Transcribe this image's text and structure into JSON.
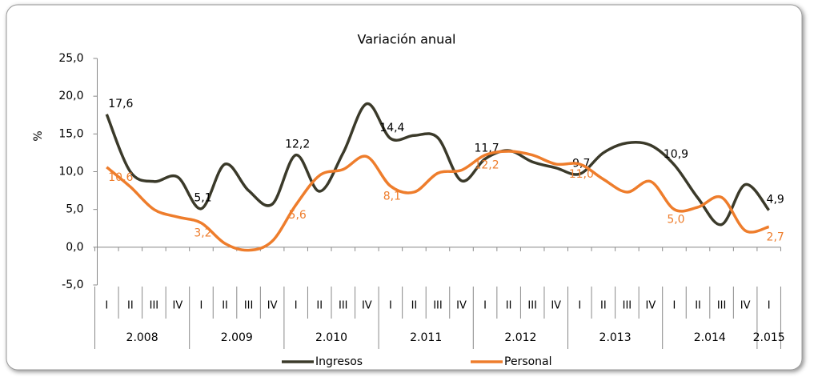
{
  "chart_data": {
    "type": "line",
    "title": "Variación anual",
    "y_label": "%",
    "categories": [
      "I",
      "II",
      "III",
      "IV",
      "I",
      "II",
      "III",
      "IV",
      "I",
      "II",
      "III",
      "IV",
      "I",
      "II",
      "III",
      "IV",
      "I",
      "II",
      "III",
      "IV",
      "I",
      "II",
      "III",
      "IV",
      "I",
      "II",
      "III",
      "IV",
      "I"
    ],
    "years": [
      "2.008",
      "2.009",
      "2.010",
      "2.011",
      "2.012",
      "2.013",
      "2.014",
      "2.015"
    ],
    "ylim": [
      -5,
      25
    ],
    "yticks": [
      {
        "value": -5,
        "label": "-5,0"
      },
      {
        "value": 0,
        "label": "0,0"
      },
      {
        "value": 5,
        "label": "5,0"
      },
      {
        "value": 10,
        "label": "10,0"
      },
      {
        "value": 15,
        "label": "15,0"
      },
      {
        "value": 20,
        "label": "20,0"
      },
      {
        "value": 25,
        "label": "25,0"
      }
    ],
    "legend": "bottom",
    "smooth": true,
    "series": [
      {
        "name": "Ingresos",
        "color": "#3b3a2a",
        "values": [
          17.6,
          10.0,
          8.7,
          9.3,
          5.1,
          11.0,
          7.5,
          5.7,
          12.2,
          7.4,
          12.5,
          19.0,
          14.4,
          14.8,
          14.5,
          8.8,
          11.7,
          12.8,
          11.3,
          10.5,
          9.7,
          12.5,
          13.8,
          13.5,
          10.9,
          6.5,
          3.0,
          8.3,
          4.9
        ],
        "value_labels": [
          "17,6",
          null,
          null,
          null,
          "5,1",
          null,
          null,
          null,
          "12,2",
          null,
          null,
          null,
          "14,4",
          null,
          null,
          null,
          "11,7",
          null,
          null,
          null,
          "9,7",
          null,
          null,
          null,
          "10,9",
          null,
          null,
          null,
          "4,9"
        ]
      },
      {
        "name": "Personal",
        "color": "#ee7d2c",
        "values": [
          10.6,
          8.0,
          5.0,
          4.0,
          3.2,
          0.5,
          -0.4,
          0.8,
          5.6,
          9.5,
          10.3,
          12.0,
          8.1,
          7.3,
          9.8,
          10.2,
          12.2,
          12.7,
          12.2,
          11.0,
          11.0,
          9.0,
          7.3,
          8.7,
          5.0,
          5.3,
          6.6,
          2.2,
          2.7
        ],
        "value_labels": [
          "10,6",
          null,
          null,
          null,
          "3,2",
          null,
          null,
          null,
          "5,6",
          null,
          null,
          null,
          "8,1",
          null,
          null,
          null,
          "12,2",
          null,
          null,
          null,
          "11,0",
          null,
          null,
          null,
          "5,0",
          null,
          null,
          null,
          "2,7"
        ]
      }
    ]
  }
}
